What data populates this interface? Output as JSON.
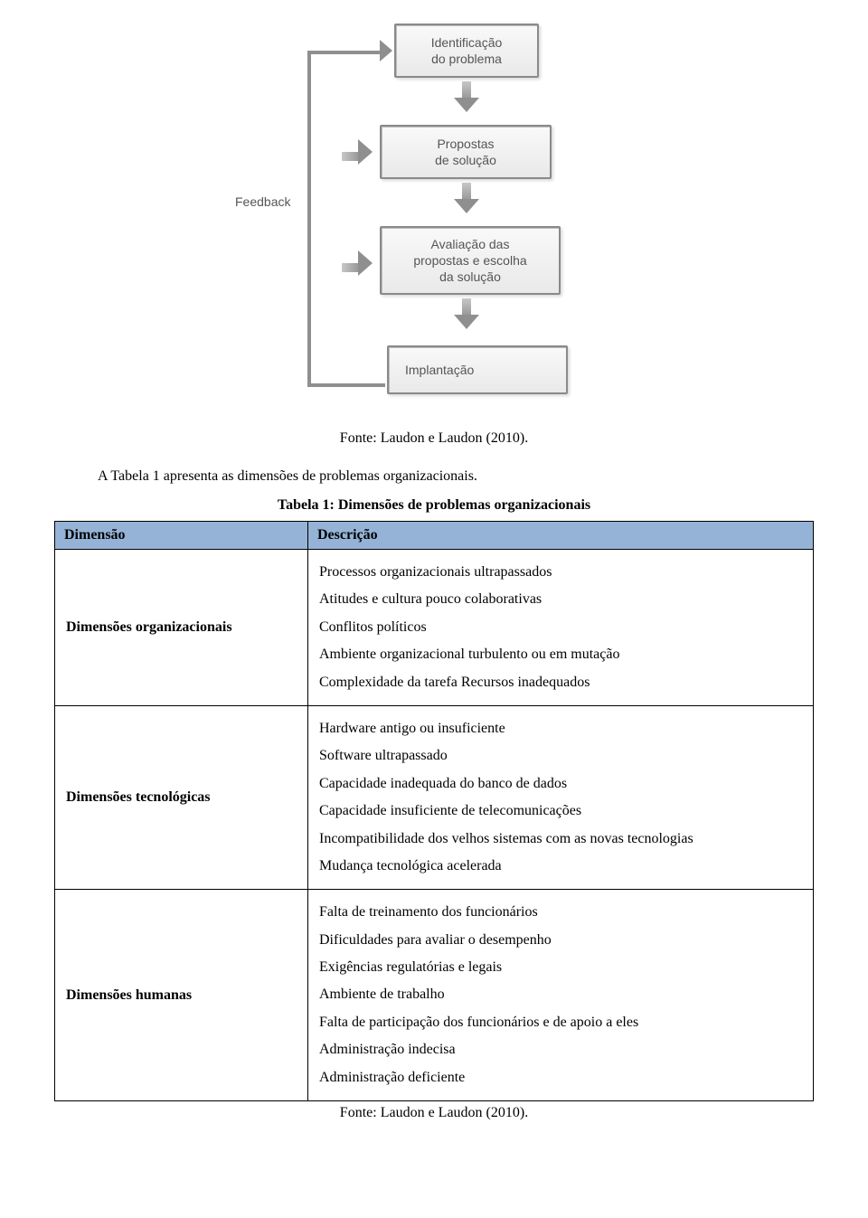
{
  "flowchart": {
    "feedback_label": "Feedback",
    "boxes": [
      {
        "text": "Identificação\ndo problema"
      },
      {
        "text": "Propostas\nde solução"
      },
      {
        "text": "Avaliação das\npropostas e escolha\nda solução"
      },
      {
        "text": "Implantação"
      }
    ],
    "style": {
      "box_bg_top": "#f9f9f9",
      "box_bg_bottom": "#e9e9e9",
      "box_border": "#8a8a8a",
      "arrow_color": "#8f8f8f",
      "text_color": "#555555",
      "font": "Verdana"
    }
  },
  "source1": "Fonte: Laudon e Laudon (2010).",
  "intro": "A Tabela 1 apresenta as dimensões de problemas organizacionais.",
  "table_title": "Tabela 1: Dimensões de problemas organizacionais",
  "table": {
    "header_bg": "#95b3d7",
    "columns": [
      "Dimensão",
      "Descrição"
    ],
    "rows": [
      {
        "label": "Dimensões organizacionais",
        "items": [
          "Processos organizacionais ultrapassados",
          "Atitudes e cultura pouco colaborativas",
          "Conflitos políticos",
          "Ambiente organizacional turbulento ou em mutação",
          "Complexidade da tarefa Recursos inadequados"
        ]
      },
      {
        "label": "Dimensões tecnológicas",
        "items": [
          "Hardware antigo ou insuficiente",
          "Software ultrapassado",
          "Capacidade inadequada do banco de dados",
          "Capacidade insuficiente de telecomunicações",
          "Incompatibilidade dos velhos sistemas com as novas tecnologias",
          "Mudança tecnológica acelerada"
        ]
      },
      {
        "label": "Dimensões humanas",
        "items": [
          "Falta de treinamento dos funcionários",
          "Dificuldades para avaliar o desempenho",
          "Exigências regulatórias e legais",
          "Ambiente de trabalho",
          "Falta de participação dos funcionários e de apoio a eles",
          "Administração indecisa",
          "Administração deficiente"
        ]
      }
    ]
  },
  "source2": "Fonte: Laudon e Laudon (2010)."
}
